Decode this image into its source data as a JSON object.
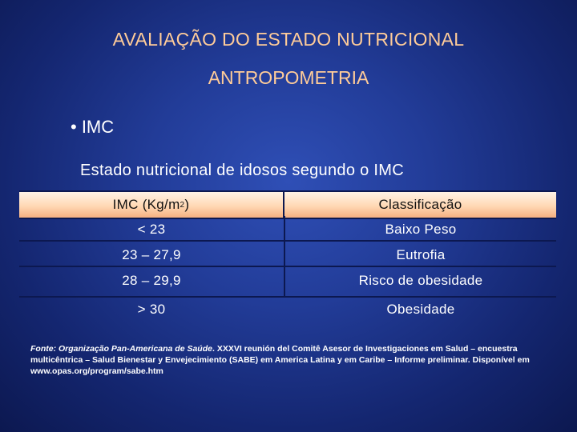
{
  "slide": {
    "title": "AVALIAÇÃO DO ESTADO NUTRICIONAL",
    "subtitle": "ANTROPOMETRIA",
    "bullet": "• IMC",
    "table_title": "Estado nutricional de idosos segundo o IMC"
  },
  "table": {
    "headers": [
      "IMC (Kg/m",
      "2",
      ")",
      "Classificação"
    ],
    "rows": [
      {
        "imc": "< 23",
        "classificacao": "Baixo Peso"
      },
      {
        "imc": "23 – 27,9",
        "classificacao": "Eutrofia"
      },
      {
        "imc": "28 – 29,9",
        "classificacao": "Risco de obesidade"
      },
      {
        "imc": "> 30",
        "classificacao": "Obesidade"
      }
    ]
  },
  "source": {
    "label": "Fonte: Organização Pan-Americana de Saúde",
    "text": ". XXXVI reunión del Comitê Asesor de Investigaciones em Salud – encuestra multicêntrica – Salud Bienestar y Envejecimiento (SABE) em America Latina y em Caribe – Informe preliminar. Disponível em www.opas.org/program/sabe.htm"
  },
  "colors": {
    "background": "#223c98",
    "title": "#ffcc99",
    "header_fill": "#ffd8b4"
  }
}
